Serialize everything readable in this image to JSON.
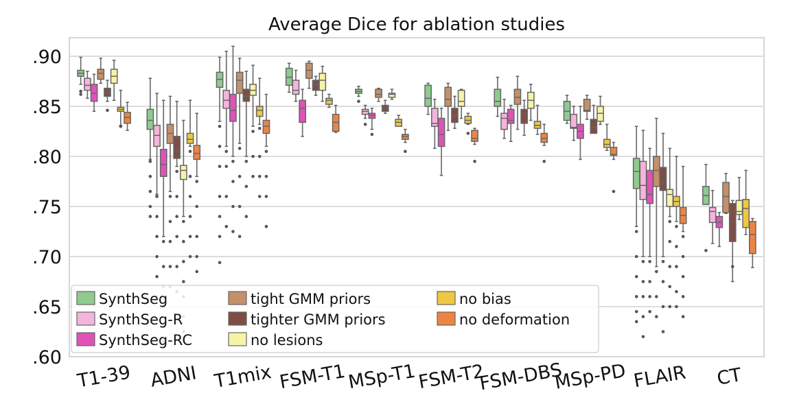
{
  "chart_data": {
    "type": "box",
    "title": "Average Dice for ablation studies",
    "xlabel": "",
    "ylabel": "",
    "ylim": [
      0.6,
      0.92
    ],
    "yticks": [
      0.6,
      0.65,
      0.7,
      0.75,
      0.8,
      0.85,
      0.9
    ],
    "ytick_labels": [
      ".60",
      ".65",
      ".70",
      ".75",
      ".80",
      ".85",
      ".90"
    ],
    "grid": true,
    "legend_position": "lower-left",
    "categories": [
      "T1-39",
      "ADNI",
      "T1mix",
      "FSM-T1",
      "MSp-T1",
      "FSM-T2",
      "FSM-DBS",
      "MSp-PD",
      "FLAIR",
      "CT"
    ],
    "series": [
      {
        "name": "SynthSeg",
        "color": "#8fca8f",
        "boxes": [
          [
            0.872,
            0.88,
            0.883,
            0.886,
            0.899
          ],
          [
            0.797,
            0.827,
            0.836,
            0.847,
            0.878
          ],
          [
            0.835,
            0.869,
            0.877,
            0.884,
            0.899
          ],
          [
            0.864,
            0.871,
            0.879,
            0.888,
            0.893
          ],
          [
            0.86,
            0.863,
            0.865,
            0.867,
            0.87
          ],
          [
            0.842,
            0.85,
            0.858,
            0.871,
            0.873
          ],
          [
            0.84,
            0.85,
            0.855,
            0.867,
            0.879
          ],
          [
            0.833,
            0.836,
            0.845,
            0.855,
            0.861
          ],
          [
            0.73,
            0.768,
            0.785,
            0.798,
            0.83
          ],
          [
            0.752,
            0.752,
            0.761,
            0.77,
            0.792
          ]
        ],
        "outliers_low": [
          [
            0.865,
            0.862
          ],
          [
            0.795,
            0.78,
            0.765,
            0.75,
            0.74
          ],
          [
            0.83,
            0.81,
            0.79,
            0.76,
            0.74,
            0.72,
            0.694
          ],
          [],
          [
            0.855
          ],
          [],
          [],
          [],
          [
            0.725,
            0.7,
            0.68,
            0.66,
            0.645,
            0.635
          ],
          [
            0.706
          ]
        ]
      },
      {
        "name": "SynthSeg-R",
        "color": "#f4b5dc",
        "boxes": [
          [
            0.858,
            0.866,
            0.871,
            0.878,
            0.885
          ],
          [
            0.762,
            0.81,
            0.821,
            0.831,
            0.863
          ],
          [
            0.81,
            0.848,
            0.856,
            0.866,
            0.905
          ],
          [
            0.855,
            0.862,
            0.866,
            0.876,
            0.886
          ],
          [
            0.838,
            0.842,
            0.845,
            0.847,
            0.851
          ],
          [
            0.808,
            0.83,
            0.833,
            0.848,
            0.857
          ],
          [
            0.818,
            0.827,
            0.838,
            0.843,
            0.857
          ],
          [
            0.816,
            0.828,
            0.829,
            0.842,
            0.85
          ],
          [
            0.7,
            0.757,
            0.771,
            0.795,
            0.826
          ],
          [
            0.713,
            0.734,
            0.745,
            0.749,
            0.766
          ]
        ],
        "outliers_low": [
          [],
          [
            0.76,
            0.74,
            0.72,
            0.7,
            0.68,
            0.66
          ],
          [
            0.805,
            0.79,
            0.76,
            0.73
          ],
          [],
          [
            0.832
          ],
          [],
          [],
          [],
          [
            0.695,
            0.675,
            0.66,
            0.64,
            0.62
          ],
          []
        ]
      },
      {
        "name": "SynthSeg-RC",
        "color": "#e052b8",
        "boxes": [
          [
            0.845,
            0.855,
            0.863,
            0.872,
            0.882
          ],
          [
            0.72,
            0.78,
            0.792,
            0.807,
            0.856
          ],
          [
            0.8,
            0.835,
            0.846,
            0.862,
            0.91
          ],
          [
            0.82,
            0.834,
            0.848,
            0.856,
            0.867
          ],
          [
            0.827,
            0.838,
            0.841,
            0.843,
            0.848
          ],
          [
            0.781,
            0.81,
            0.822,
            0.838,
            0.848
          ],
          [
            0.815,
            0.833,
            0.836,
            0.847,
            0.851
          ],
          [
            0.797,
            0.818,
            0.825,
            0.832,
            0.85
          ],
          [
            0.7,
            0.753,
            0.762,
            0.786,
            0.808
          ],
          [
            0.71,
            0.729,
            0.734,
            0.74,
            0.744
          ]
        ],
        "outliers_low": [
          [],
          [
            0.715,
            0.69,
            0.67,
            0.65,
            0.63,
            0.615
          ],
          [
            0.795,
            0.775,
            0.75,
            0.725
          ],
          [],
          [
            0.822
          ],
          [],
          [],
          [],
          [
            0.695,
            0.675,
            0.66,
            0.645
          ],
          []
        ]
      },
      {
        "name": "tight GMM priors",
        "color": "#c4906a",
        "boxes": [
          [
            0.873,
            0.877,
            0.883,
            0.887,
            0.898
          ],
          [
            0.765,
            0.813,
            0.823,
            0.832,
            0.86
          ],
          [
            0.813,
            0.863,
            0.876,
            0.884,
            0.898
          ],
          [
            0.868,
            0.878,
            0.886,
            0.893,
            0.895
          ],
          [
            0.855,
            0.859,
            0.862,
            0.867,
            0.868
          ],
          [
            0.826,
            0.85,
            0.857,
            0.869,
            0.873
          ],
          [
            0.827,
            0.852,
            0.859,
            0.867,
            0.88
          ],
          [
            0.837,
            0.845,
            0.846,
            0.857,
            0.861
          ],
          [
            0.69,
            0.77,
            0.786,
            0.8,
            0.838
          ],
          [
            0.743,
            0.744,
            0.76,
            0.774,
            0.783
          ]
        ],
        "outliers_low": [
          [],
          [
            0.76,
            0.735,
            0.715,
            0.69,
            0.67
          ],
          [
            0.808,
            0.78,
            0.75,
            0.72
          ],
          [],
          [],
          [],
          [],
          [],
          [
            0.685,
            0.66,
            0.64
          ],
          []
        ]
      },
      {
        "name": "tighter GMM priors",
        "color": "#7d4e45",
        "boxes": [
          [
            0.855,
            0.86,
            0.864,
            0.868,
            0.876
          ],
          [
            0.79,
            0.798,
            0.806,
            0.82,
            0.855
          ],
          [
            0.8,
            0.855,
            0.86,
            0.867,
            0.885
          ],
          [
            0.861,
            0.866,
            0.872,
            0.876,
            0.88
          ],
          [
            0.843,
            0.845,
            0.848,
            0.851,
            0.856
          ],
          [
            0.828,
            0.834,
            0.841,
            0.848,
            0.86
          ],
          [
            0.821,
            0.833,
            0.843,
            0.847,
            0.856
          ],
          [
            0.824,
            0.823,
            0.829,
            0.837,
            0.851
          ],
          [
            0.7,
            0.766,
            0.774,
            0.789,
            0.823
          ],
          [
            0.675,
            0.715,
            0.735,
            0.753,
            0.756
          ]
        ],
        "outliers_low": [
          [
            0.846
          ],
          [
            0.785,
            0.76,
            0.74,
            0.72,
            0.69,
            0.665
          ],
          [
            0.795,
            0.77,
            0.74
          ],
          [],
          [],
          [],
          [],
          [],
          [
            0.695,
            0.675,
            0.65,
            0.625
          ],
          [
            0.69
          ]
        ]
      },
      {
        "name": "no lesions",
        "color": "#f7f3a7",
        "boxes": [
          [
            0.856,
            0.873,
            0.88,
            0.887,
            0.896
          ],
          [
            0.74,
            0.777,
            0.786,
            0.791,
            0.836
          ],
          [
            0.83,
            0.861,
            0.866,
            0.872,
            0.891
          ],
          [
            0.855,
            0.866,
            0.876,
            0.883,
            0.89
          ],
          [
            0.857,
            0.859,
            0.862,
            0.863,
            0.867
          ],
          [
            0.838,
            0.85,
            0.855,
            0.866,
            0.867
          ],
          [
            0.836,
            0.848,
            0.856,
            0.864,
            0.872
          ],
          [
            0.832,
            0.835,
            0.843,
            0.85,
            0.86
          ],
          [
            0.74,
            0.75,
            0.762,
            0.767,
            0.808
          ],
          [
            0.737,
            0.742,
            0.745,
            0.756,
            0.779
          ]
        ],
        "outliers_low": [
          [],
          [
            0.735,
            0.715,
            0.695,
            0.675,
            0.66,
            0.64,
            0.625
          ],
          [
            0.825,
            0.8,
            0.78
          ],
          [],
          [],
          [],
          [],
          [],
          [
            0.735,
            0.715,
            0.69,
            0.67,
            0.65
          ],
          []
        ]
      },
      {
        "name": "no bias",
        "color": "#ecc843",
        "boxes": [
          [
            0.831,
            0.845,
            0.847,
            0.849,
            0.866
          ],
          [
            0.81,
            0.813,
            0.817,
            0.823,
            0.856
          ],
          [
            0.832,
            0.84,
            0.846,
            0.85,
            0.878
          ],
          [
            0.849,
            0.852,
            0.856,
            0.858,
            0.862
          ],
          [
            0.832,
            0.83,
            0.834,
            0.837,
            0.841
          ],
          [
            0.832,
            0.833,
            0.836,
            0.84,
            0.843
          ],
          [
            0.822,
            0.828,
            0.831,
            0.835,
            0.851
          ],
          [
            0.806,
            0.809,
            0.812,
            0.817,
            0.832
          ],
          [
            0.735,
            0.75,
            0.755,
            0.76,
            0.8
          ],
          [
            0.722,
            0.729,
            0.748,
            0.757,
            0.786
          ]
        ],
        "outliers_low": [
          [
            0.83
          ],
          [
            0.805,
            0.78,
            0.76,
            0.74,
            0.72,
            0.7
          ],
          [
            0.828,
            0.8,
            0.78,
            0.76
          ],
          [],
          [],
          [
            0.823
          ],
          [],
          [],
          [
            0.73,
            0.71,
            0.69,
            0.665,
            0.65
          ],
          []
        ]
      },
      {
        "name": "no deformation",
        "color": "#ec8542",
        "boxes": [
          [
            0.826,
            0.833,
            0.839,
            0.844,
            0.854
          ],
          [
            0.78,
            0.797,
            0.803,
            0.811,
            0.843
          ],
          [
            0.81,
            0.823,
            0.83,
            0.836,
            0.862
          ],
          [
            0.824,
            0.825,
            0.834,
            0.842,
            0.851
          ],
          [
            0.814,
            0.817,
            0.82,
            0.822,
            0.827
          ],
          [
            0.812,
            0.815,
            0.818,
            0.826,
            0.828
          ],
          [
            0.811,
            0.814,
            0.818,
            0.823,
            0.832
          ],
          [
            0.797,
            0.801,
            0.802,
            0.809,
            0.814
          ],
          [
            0.725,
            0.733,
            0.741,
            0.749,
            0.79
          ],
          [
            0.689,
            0.703,
            0.722,
            0.735,
            0.738
          ]
        ],
        "outliers_low": [
          [],
          [
            0.775,
            0.75,
            0.72,
            0.7,
            0.685
          ],
          [
            0.805,
            0.78,
            0.76,
            0.73
          ],
          [],
          [
            0.805
          ],
          [
            0.795
          ],
          [
            0.795
          ],
          [
            0.765
          ],
          [
            0.72,
            0.7,
            0.68,
            0.66,
            0.64
          ],
          []
        ]
      }
    ]
  }
}
